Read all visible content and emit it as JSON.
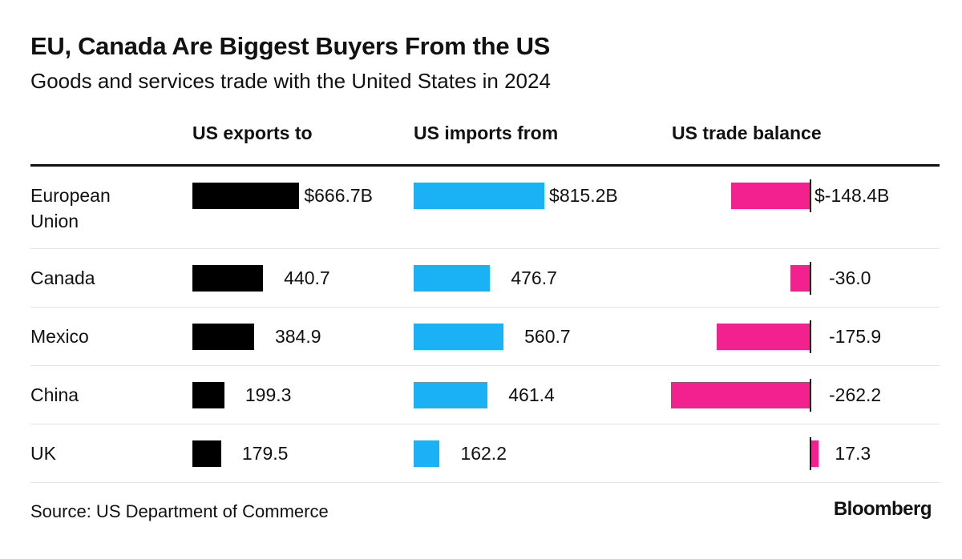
{
  "title": "EU, Canada Are Biggest Buyers From the US",
  "subtitle": "Goods and services trade with the United States in 2024",
  "source": "Source: US Department of Commerce",
  "brand": "Bloomberg",
  "chart_data": {
    "type": "bar",
    "categories": [
      "European Union",
      "Canada",
      "Mexico",
      "China",
      "UK"
    ],
    "category_display": [
      "European\nUnion",
      "Canada",
      "Mexico",
      "China",
      "UK"
    ],
    "series": [
      {
        "name": "US exports to",
        "values": [
          666.7,
          440.7,
          384.9,
          199.3,
          179.5
        ],
        "labels": [
          "$666.7B",
          "440.7",
          "384.9",
          "199.3",
          "179.5"
        ],
        "color": "#000000"
      },
      {
        "name": "US imports from",
        "values": [
          815.2,
          476.7,
          560.7,
          461.4,
          162.2
        ],
        "labels": [
          "$815.2B",
          "476.7",
          "560.7",
          "461.4",
          "162.2"
        ],
        "color": "#1ab2f5"
      },
      {
        "name": "US trade balance",
        "values": [
          -148.4,
          -36.0,
          -175.9,
          -262.2,
          17.3
        ],
        "labels": [
          "$-148.4B",
          "-36.0",
          "-175.9",
          "-262.2",
          "17.3"
        ],
        "color": "#f2218f"
      }
    ],
    "units": "USD billions",
    "legend": "none"
  }
}
